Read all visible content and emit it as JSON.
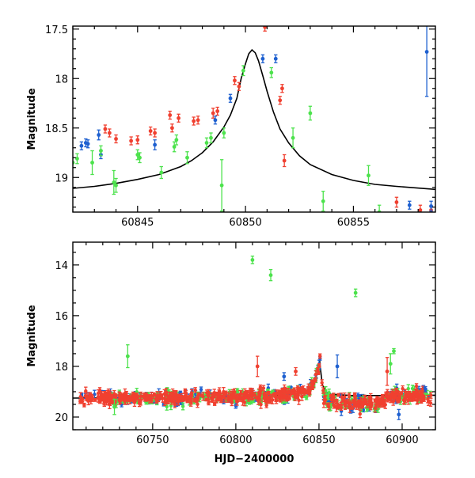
{
  "chart_data": [
    {
      "type": "scatter",
      "panel": "top",
      "title": "",
      "xlabel": "",
      "ylabel": "Magnitude",
      "xlim": [
        60842,
        60858.8
      ],
      "ylim": [
        19.35,
        17.47
      ],
      "y_inverted": true,
      "x_ticks": [
        60845,
        60850,
        60855
      ],
      "x_tick_labels": [
        "60845",
        "60850",
        "60855"
      ],
      "y_ticks": [
        17.5,
        18,
        18.5,
        19
      ],
      "y_tick_labels": [
        "17.5",
        "18",
        "18.5",
        "19"
      ],
      "grid": false,
      "legend": "none",
      "model_curve": {
        "color": "#000000",
        "points": [
          [
            60842.0,
            19.11
          ],
          [
            60843.0,
            19.09
          ],
          [
            60844.0,
            19.06
          ],
          [
            60845.0,
            19.02
          ],
          [
            60846.0,
            18.97
          ],
          [
            60847.0,
            18.89
          ],
          [
            60847.5,
            18.83
          ],
          [
            60848.0,
            18.75
          ],
          [
            60848.5,
            18.64
          ],
          [
            60849.0,
            18.49
          ],
          [
            60849.3,
            18.37
          ],
          [
            60849.6,
            18.2
          ],
          [
            60849.8,
            18.0
          ],
          [
            60850.0,
            17.85
          ],
          [
            60850.15,
            17.75
          ],
          [
            60850.3,
            17.71
          ],
          [
            60850.45,
            17.74
          ],
          [
            60850.6,
            17.82
          ],
          [
            60850.8,
            17.97
          ],
          [
            60851.0,
            18.13
          ],
          [
            60851.3,
            18.34
          ],
          [
            60851.6,
            18.51
          ],
          [
            60852.0,
            18.65
          ],
          [
            60852.5,
            18.78
          ],
          [
            60853.0,
            18.87
          ],
          [
            60854.0,
            18.97
          ],
          [
            60855.0,
            19.03
          ],
          [
            60856.0,
            19.07
          ],
          [
            60857.0,
            19.09
          ],
          [
            60858.8,
            19.12
          ]
        ]
      },
      "series": [
        {
          "color": "#f04030",
          "points": [
            {
              "x": 60843.5,
              "y": 18.51,
              "err": 0.04
            },
            {
              "x": 60843.7,
              "y": 18.55,
              "err": 0.04
            },
            {
              "x": 60844.0,
              "y": 18.61,
              "err": 0.04
            },
            {
              "x": 60844.7,
              "y": 18.63,
              "err": 0.04
            },
            {
              "x": 60845.0,
              "y": 18.62,
              "err": 0.04
            },
            {
              "x": 60845.6,
              "y": 18.53,
              "err": 0.04
            },
            {
              "x": 60845.8,
              "y": 18.55,
              "err": 0.04
            },
            {
              "x": 60846.5,
              "y": 18.37,
              "err": 0.04
            },
            {
              "x": 60846.6,
              "y": 18.5,
              "err": 0.04
            },
            {
              "x": 60846.9,
              "y": 18.4,
              "err": 0.04
            },
            {
              "x": 60847.6,
              "y": 18.43,
              "err": 0.04
            },
            {
              "x": 60847.8,
              "y": 18.42,
              "err": 0.04
            },
            {
              "x": 60848.5,
              "y": 18.35,
              "err": 0.05
            },
            {
              "x": 60848.7,
              "y": 18.33,
              "err": 0.04
            },
            {
              "x": 60849.5,
              "y": 18.02,
              "err": 0.04
            },
            {
              "x": 60849.7,
              "y": 18.08,
              "err": 0.04
            },
            {
              "x": 60850.9,
              "y": 17.48,
              "err": 0.04
            },
            {
              "x": 60851.6,
              "y": 18.22,
              "err": 0.04
            },
            {
              "x": 60851.7,
              "y": 18.1,
              "err": 0.04
            },
            {
              "x": 60851.8,
              "y": 18.83,
              "err": 0.06
            },
            {
              "x": 60857.0,
              "y": 19.25,
              "err": 0.05
            },
            {
              "x": 60858.1,
              "y": 19.33,
              "err": 0.05
            },
            {
              "x": 60858.6,
              "y": 19.33,
              "err": 0.04
            }
          ]
        },
        {
          "color": "#1e60d0",
          "points": [
            {
              "x": 60842.4,
              "y": 18.68,
              "err": 0.04
            },
            {
              "x": 60842.6,
              "y": 18.65,
              "err": 0.04
            },
            {
              "x": 60842.7,
              "y": 18.66,
              "err": 0.04
            },
            {
              "x": 60843.2,
              "y": 18.57,
              "err": 0.05
            },
            {
              "x": 60843.3,
              "y": 18.77,
              "err": 0.04
            },
            {
              "x": 60845.8,
              "y": 18.67,
              "err": 0.05
            },
            {
              "x": 60848.6,
              "y": 18.42,
              "err": 0.04
            },
            {
              "x": 60849.3,
              "y": 18.2,
              "err": 0.04
            },
            {
              "x": 60850.8,
              "y": 17.8,
              "err": 0.04
            },
            {
              "x": 60851.4,
              "y": 17.8,
              "err": 0.04
            },
            {
              "x": 60857.6,
              "y": 19.28,
              "err": 0.04
            },
            {
              "x": 60858.4,
              "y": 17.73,
              "err": 0.45
            },
            {
              "x": 60858.6,
              "y": 19.29,
              "err": 0.05
            }
          ]
        },
        {
          "color": "#4ce24c",
          "points": [
            {
              "x": 60842.0,
              "y": 18.85,
              "err": 0.05
            },
            {
              "x": 60842.2,
              "y": 18.81,
              "err": 0.05
            },
            {
              "x": 60842.9,
              "y": 18.85,
              "err": 0.12
            },
            {
              "x": 60843.3,
              "y": 18.73,
              "err": 0.05
            },
            {
              "x": 60843.9,
              "y": 19.05,
              "err": 0.12
            },
            {
              "x": 60844.0,
              "y": 19.08,
              "err": 0.07
            },
            {
              "x": 60845.0,
              "y": 18.77,
              "err": 0.05
            },
            {
              "x": 60845.1,
              "y": 18.8,
              "err": 0.05
            },
            {
              "x": 60846.1,
              "y": 18.95,
              "err": 0.06
            },
            {
              "x": 60846.7,
              "y": 18.69,
              "err": 0.05
            },
            {
              "x": 60846.8,
              "y": 18.62,
              "err": 0.05
            },
            {
              "x": 60847.3,
              "y": 18.8,
              "err": 0.06
            },
            {
              "x": 60848.2,
              "y": 18.65,
              "err": 0.05
            },
            {
              "x": 60848.4,
              "y": 18.6,
              "err": 0.05
            },
            {
              "x": 60848.9,
              "y": 19.08,
              "err": 0.26
            },
            {
              "x": 60849.0,
              "y": 18.55,
              "err": 0.05
            },
            {
              "x": 60849.9,
              "y": 17.92,
              "err": 0.05
            },
            {
              "x": 60851.2,
              "y": 17.94,
              "err": 0.05
            },
            {
              "x": 60852.2,
              "y": 18.6,
              "err": 0.1
            },
            {
              "x": 60853.0,
              "y": 18.35,
              "err": 0.07
            },
            {
              "x": 60853.6,
              "y": 19.24,
              "err": 0.1
            },
            {
              "x": 60855.7,
              "y": 18.98,
              "err": 0.1
            },
            {
              "x": 60856.2,
              "y": 19.35,
              "err": 0.07
            }
          ]
        }
      ]
    },
    {
      "type": "scatter",
      "panel": "bottom",
      "title": "",
      "xlabel": "HJD−2400000",
      "ylabel": "Magnitude",
      "xlim": [
        60702,
        60920
      ],
      "ylim": [
        20.5,
        13.1
      ],
      "y_inverted": true,
      "x_ticks": [
        60750,
        60800,
        60850,
        60900
      ],
      "x_tick_labels": [
        "60750",
        "60800",
        "60850",
        "60900"
      ],
      "y_ticks": [
        14,
        16,
        18,
        20
      ],
      "y_tick_labels": [
        "14",
        "16",
        "18",
        "20"
      ],
      "grid": false,
      "legend": "none",
      "model_curve": {
        "color": "#000000",
        "points": [
          [
            60702,
            19.25
          ],
          [
            60760,
            19.24
          ],
          [
            60800,
            19.21
          ],
          [
            60820,
            19.17
          ],
          [
            60830,
            19.12
          ],
          [
            60838,
            19.04
          ],
          [
            60843,
            18.95
          ],
          [
            60846,
            18.75
          ],
          [
            60848,
            18.5
          ],
          [
            60849.5,
            18.15
          ],
          [
            60850.3,
            17.72
          ],
          [
            60851,
            18.15
          ],
          [
            60852,
            18.7
          ],
          [
            60854,
            19.0
          ],
          [
            60857,
            19.1
          ],
          [
            60870,
            19.15
          ],
          [
            60900,
            19.15
          ],
          [
            60920,
            19.14
          ]
        ]
      },
      "scatter_series": [
        {
          "color": "#1e60d0",
          "n": 170,
          "x_range": [
            60706,
            60918
          ]
        },
        {
          "color": "#4ce24c",
          "n": 210,
          "x_range": [
            60725,
            60918
          ]
        },
        {
          "color": "#f04030",
          "n": 520,
          "x_range": [
            60706,
            60918
          ]
        }
      ],
      "outliers": [
        {
          "color": "#4ce24c",
          "x": 60810,
          "y": 13.8,
          "err": 0.15
        },
        {
          "color": "#4ce24c",
          "x": 60821,
          "y": 14.4,
          "err": 0.22
        },
        {
          "color": "#4ce24c",
          "x": 60872,
          "y": 15.1,
          "err": 0.15
        },
        {
          "color": "#4ce24c",
          "x": 60735,
          "y": 17.6,
          "err": 0.45
        },
        {
          "color": "#4ce24c",
          "x": 60893,
          "y": 17.9,
          "err": 0.4
        },
        {
          "color": "#4ce24c",
          "x": 60895,
          "y": 17.4,
          "err": 0.1
        },
        {
          "color": "#f04030",
          "x": 60813,
          "y": 18.0,
          "err": 0.4
        },
        {
          "color": "#f04030",
          "x": 60891,
          "y": 18.2,
          "err": 0.55
        },
        {
          "color": "#f04030",
          "x": 60836,
          "y": 18.2,
          "err": 0.15
        },
        {
          "color": "#1e60d0",
          "x": 60861,
          "y": 18.0,
          "err": 0.45
        },
        {
          "color": "#1e60d0",
          "x": 60829,
          "y": 18.4,
          "err": 0.15
        },
        {
          "color": "#1e60d0",
          "x": 60898,
          "y": 19.9,
          "err": 0.2
        },
        {
          "color": "#4ce24c",
          "x": 60727,
          "y": 19.6,
          "err": 0.3
        },
        {
          "color": "#1e60d0",
          "x": 60914,
          "y": 18.9,
          "err": 0.1
        }
      ]
    }
  ]
}
